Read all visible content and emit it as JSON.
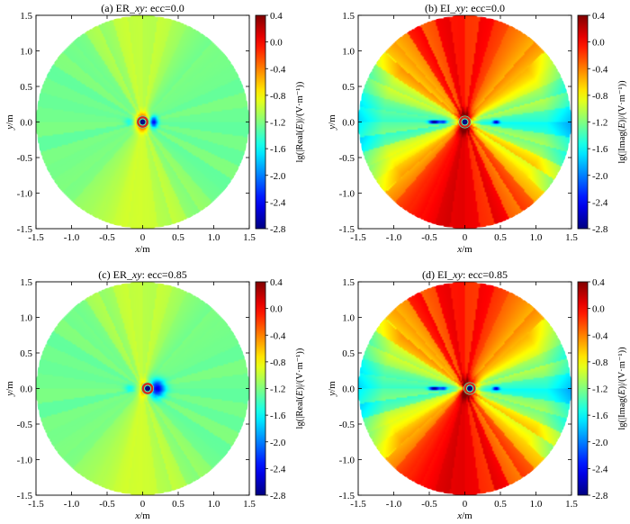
{
  "figure": {
    "cbar_ticks": [
      "0.4",
      "0.0",
      "-0.4",
      "-0.8",
      "-1.2",
      "-1.6",
      "-2.0",
      "-2.4",
      "-2.8"
    ],
    "axis_ticks": [
      "-1.5",
      "-1.0",
      "-0.5",
      "0",
      "0.5",
      "1.0",
      "1.5"
    ],
    "y_axis_ticks": [
      "1.5",
      "1.0",
      "0.5",
      "0.0",
      "-0.5",
      "-1.0",
      "-1.5"
    ]
  },
  "chart_data": [
    {
      "type": "heatmap",
      "title_prefix": "(a) ER_",
      "title_italic": "xy",
      "title_suffix": ": ecc=0.0",
      "xlabel_var": "x",
      "xlabel_unit": "/m",
      "ylabel_var": "y",
      "ylabel_unit": "/m",
      "xlim": [
        -1.5,
        1.5
      ],
      "ylim": [
        -1.5,
        1.5
      ],
      "colorbar": {
        "label_pre": "lg(|Real(",
        "label_var": "E",
        "label_post": ")|/(V·m⁻¹))",
        "range": [
          -2.8,
          0.4
        ]
      },
      "field": {
        "kind": "real",
        "ecc": 0.0,
        "background": -1.25,
        "source_x": 0.0
      }
    },
    {
      "type": "heatmap",
      "title_prefix": "(b) EI_",
      "title_italic": "xy",
      "title_suffix": ": ecc=0.0",
      "xlabel_var": "x",
      "xlabel_unit": "/m",
      "ylabel_var": "y",
      "ylabel_unit": "/m",
      "xlim": [
        -1.5,
        1.5
      ],
      "ylim": [
        -1.5,
        1.5
      ],
      "colorbar": {
        "label_pre": "lg(|Imag(",
        "label_var": "E",
        "label_post": ")|/(V·m⁻¹))",
        "range": [
          -2.8,
          0.4
        ]
      },
      "field": {
        "kind": "imag",
        "ecc": 0.0,
        "background": -0.35,
        "source_x": 0.0
      }
    },
    {
      "type": "heatmap",
      "title_prefix": "(c) ER_",
      "title_italic": "xy",
      "title_suffix": ": ecc=0.85",
      "xlabel_var": "x",
      "xlabel_unit": "/m",
      "ylabel_var": "y",
      "ylabel_unit": "/m",
      "xlim": [
        -1.5,
        1.5
      ],
      "ylim": [
        -1.5,
        1.5
      ],
      "colorbar": {
        "label_pre": "lg(|Real(",
        "label_var": "E",
        "label_post": ")|/(V·m⁻¹))",
        "range": [
          -2.8,
          0.4
        ]
      },
      "field": {
        "kind": "real",
        "ecc": 0.85,
        "background": -1.25,
        "source_x": 0.07
      }
    },
    {
      "type": "heatmap",
      "title_prefix": "(d) EI_",
      "title_italic": "xy",
      "title_suffix": ": ecc=0.85",
      "xlabel_var": "x",
      "xlabel_unit": "/m",
      "ylabel_var": "y",
      "ylabel_unit": "/m",
      "xlim": [
        -1.5,
        1.5
      ],
      "ylim": [
        -1.5,
        1.5
      ],
      "colorbar": {
        "label_pre": "lg(|Imag(",
        "label_var": "E",
        "label_post": ")|/(V·m⁻¹))",
        "range": [
          -2.8,
          0.4
        ]
      },
      "field": {
        "kind": "imag",
        "ecc": 0.85,
        "background": -0.35,
        "source_x": 0.07
      }
    }
  ]
}
